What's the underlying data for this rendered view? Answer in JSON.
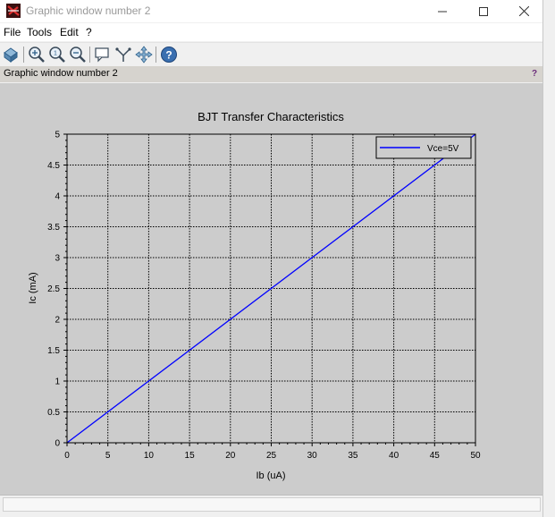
{
  "window": {
    "title": "Graphic window number 2",
    "controls": [
      "minimize-icon",
      "maximize-icon",
      "close-icon"
    ]
  },
  "menu": {
    "items": [
      "File",
      "Tools",
      "Edit",
      "?"
    ]
  },
  "toolbar": {
    "buttons": [
      "rotate-icon",
      "zoom-in-icon",
      "zoom-fit-icon",
      "zoom-out-icon",
      "datatip-icon",
      "edit-icon",
      "pan-icon",
      "help-icon"
    ]
  },
  "infobar": {
    "text": "Graphic window number 2",
    "help": "?"
  },
  "chart_data": {
    "type": "line",
    "title": "BJT Transfer Characteristics",
    "xlabel": "Ib (uA)",
    "ylabel": "Ic (mA)",
    "xlim": [
      0,
      50
    ],
    "ylim": [
      0,
      5
    ],
    "xticks": [
      "0",
      "5",
      "10",
      "15",
      "20",
      "25",
      "30",
      "35",
      "40",
      "45",
      "50"
    ],
    "yticks": [
      "0",
      "0.5",
      "1",
      "1.5",
      "2",
      "2.5",
      "3",
      "3.5",
      "4",
      "4.5",
      "5"
    ],
    "grid": true,
    "legend": "top-right",
    "series": [
      {
        "name": "Vce=5V",
        "color": "#0000ff",
        "x": [
          0,
          50
        ],
        "y": [
          0,
          5
        ]
      }
    ]
  }
}
